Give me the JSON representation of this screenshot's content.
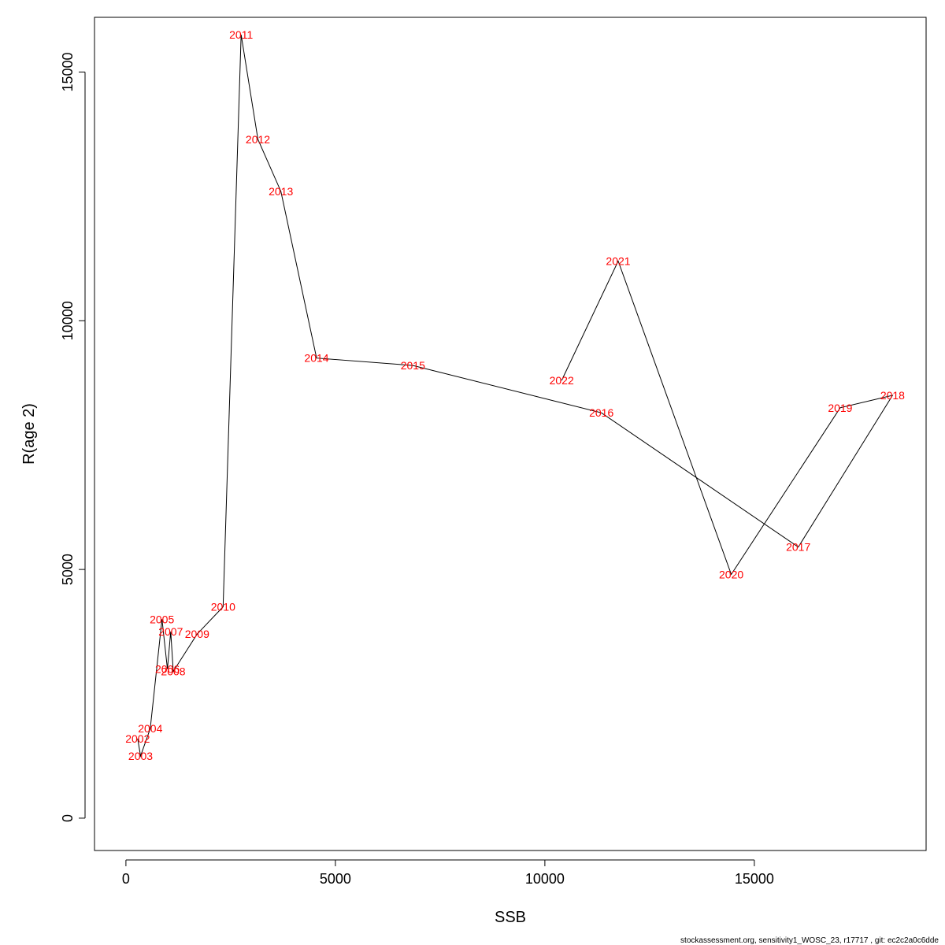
{
  "chart_data": {
    "type": "line",
    "xlabel": "SSB",
    "ylabel": "R(age 2)",
    "xlim": [
      -750,
      19100
    ],
    "ylim": [
      -650,
      16100
    ],
    "x_ticks": [
      0,
      5000,
      10000,
      15000
    ],
    "y_ticks": [
      0,
      5000,
      10000,
      15000
    ],
    "grid": false,
    "line_color": "#000000",
    "label_color": "#ff0000",
    "points": [
      {
        "label": "2002",
        "x": 280,
        "y": 1600
      },
      {
        "label": "2003",
        "x": 350,
        "y": 1250
      },
      {
        "label": "2004",
        "x": 580,
        "y": 1800
      },
      {
        "label": "2005",
        "x": 860,
        "y": 4000
      },
      {
        "label": "2006",
        "x": 990,
        "y": 3000
      },
      {
        "label": "2007",
        "x": 1070,
        "y": 3750
      },
      {
        "label": "2008",
        "x": 1130,
        "y": 2950
      },
      {
        "label": "2009",
        "x": 1700,
        "y": 3700
      },
      {
        "label": "2010",
        "x": 2320,
        "y": 4250
      },
      {
        "label": "2011",
        "x": 2750,
        "y": 15750
      },
      {
        "label": "2012",
        "x": 3150,
        "y": 13650
      },
      {
        "label": "2013",
        "x": 3700,
        "y": 12600
      },
      {
        "label": "2014",
        "x": 4550,
        "y": 9250
      },
      {
        "label": "2015",
        "x": 6850,
        "y": 9100
      },
      {
        "label": "2016",
        "x": 11350,
        "y": 8150
      },
      {
        "label": "2017",
        "x": 16050,
        "y": 5450
      },
      {
        "label": "2018",
        "x": 18300,
        "y": 8500
      },
      {
        "label": "2019",
        "x": 17050,
        "y": 8250
      },
      {
        "label": "2020",
        "x": 14450,
        "y": 4900
      },
      {
        "label": "2021",
        "x": 11750,
        "y": 11200
      },
      {
        "label": "2022",
        "x": 10400,
        "y": 8800
      }
    ]
  },
  "footer": {
    "text": "stockassessment.org, sensitivity1_WOSC_23, r17717 , git: ec2c2a0c6dde"
  }
}
